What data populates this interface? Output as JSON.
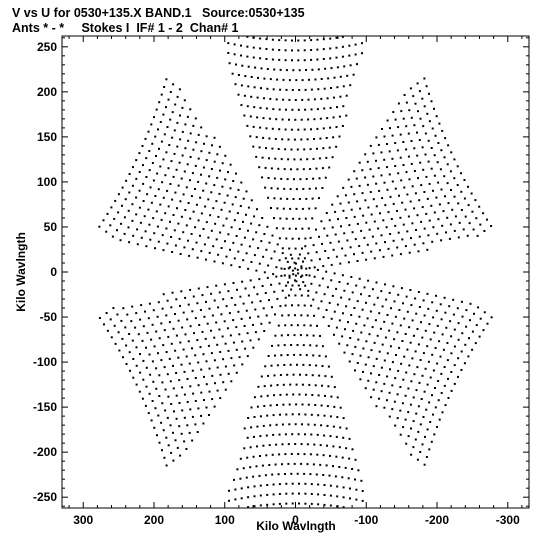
{
  "header": {
    "title_line1": "V vs U for 0530+135.X BAND.1   Source:0530+135",
    "title_line2": "Ants * - *     Stokes I  IF# 1 - 2  Chan# 1"
  },
  "chart_data": {
    "type": "scatter",
    "title": "V vs U for 0530+135.X BAND.1   Source:0530+135",
    "subtitle": "Ants * - *     Stokes I  IF# 1 - 2  Chan# 1",
    "xlabel": "Kilo Wavlngth",
    "ylabel": "Kilo Wavlngth",
    "xlim": [
      330,
      -330
    ],
    "ylim": [
      -262,
      262
    ],
    "x_ticks": [
      300,
      200,
      100,
      0,
      -100,
      -200,
      -300
    ],
    "y_ticks": [
      250,
      200,
      150,
      100,
      50,
      0,
      -50,
      -100,
      -150,
      -200,
      -250
    ],
    "grid": false,
    "legend": "none",
    "marker_color": "#000000",
    "series": [
      {
        "arm_angles_deg": [
          90,
          30,
          -30,
          -90,
          -150,
          150
        ],
        "arm_radial_extent": [
          4,
          265
        ],
        "arm_lateral_extent": [
          -95,
          95
        ],
        "mirrored_uv_pairs": true,
        "description_of_pattern": "VLA snapshot uv-coverage: six-armed star of dotted baseline tracks"
      }
    ]
  }
}
